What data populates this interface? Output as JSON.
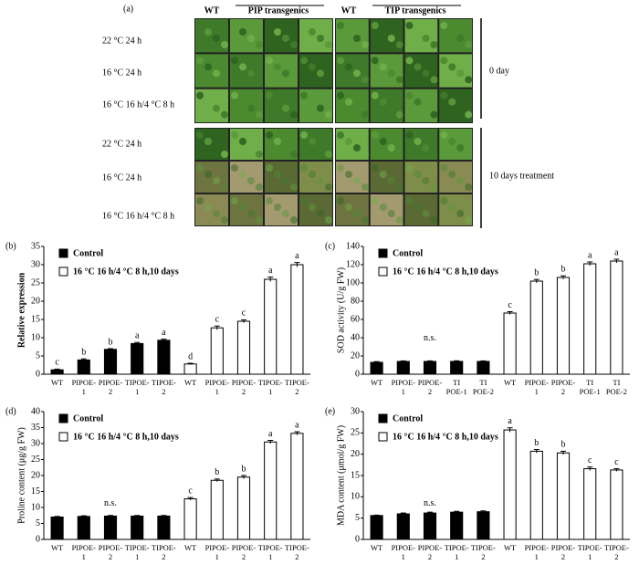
{
  "panel_a": {
    "label": "(a)",
    "headers": [
      "WT",
      "PIP transgenics",
      "WT",
      "TIP transgenics"
    ],
    "rows": [
      "22 °C 24 h",
      "16 °C 24 h",
      "16 °C 16 h/4 °C 8 h",
      "22 °C 24 h",
      "16 °C 24 h",
      "16 °C 16 h/4 °C 8 h"
    ],
    "periods": [
      "0 day",
      "10 days treatment"
    ]
  },
  "chart_data": [
    {
      "type": "bar",
      "panel": "(b)",
      "ylabel": "Relative expression",
      "categories": [
        "WT",
        "PIPOE-\n1",
        "PIPOE-\n2",
        "TIPOE-\n1",
        "TIPOE-\n2",
        "WT",
        "PIPOE-\n1",
        "PIPOE-\n2",
        "TIPOE-\n1",
        "TIPOE-\n2"
      ],
      "series": [
        {
          "name": "Control",
          "color": "#000000",
          "values": [
            1.2,
            3.9,
            6.8,
            8.4,
            9.3,
            null,
            null,
            null,
            null,
            null
          ],
          "errors": [
            0.2,
            0.3,
            0.2,
            0.3,
            0.3,
            null,
            null,
            null,
            null,
            null
          ],
          "letters": [
            "c",
            "b",
            "b",
            "a",
            "a",
            null,
            null,
            null,
            null,
            null
          ]
        },
        {
          "name": "16 °C 16 h/4 °C 8 h,10 days",
          "color": "#ffffff",
          "values": [
            null,
            null,
            null,
            null,
            null,
            2.8,
            12.7,
            14.5,
            26,
            30
          ],
          "errors": [
            null,
            null,
            null,
            null,
            null,
            0.2,
            0.5,
            0.4,
            0.6,
            0.6
          ],
          "letters": [
            null,
            null,
            null,
            null,
            null,
            "d",
            "c",
            "c",
            "a",
            "a"
          ]
        }
      ],
      "ylim": [
        0,
        35
      ],
      "yticks": [
        0,
        5,
        10,
        15,
        20,
        25,
        30,
        35
      ]
    },
    {
      "type": "bar",
      "panel": "(c)",
      "ylabel": "SOD activity (U/g FW)",
      "categories": [
        "WT",
        "PIPOE-\n1",
        "PIPOE-\n2",
        "TI\nPOE-1",
        "TI\nPOE-2",
        "WT",
        "PIPOE-\n1",
        "PIPOE-\n2",
        "TI\nPOE-1",
        "TI\nPOE-2"
      ],
      "series": [
        {
          "name": "Control",
          "color": "#000000",
          "values": [
            13,
            14,
            14,
            14,
            14,
            null,
            null,
            null,
            null,
            null
          ],
          "errors": [
            0.8,
            0.6,
            0.6,
            0.7,
            0.6,
            null,
            null,
            null,
            null,
            null
          ]
        },
        {
          "name": "16 °C 16 h/4 °C 8 h,10 days",
          "color": "#ffffff",
          "values": [
            null,
            null,
            null,
            null,
            null,
            67,
            102,
            106,
            121,
            124
          ],
          "errors": [
            null,
            null,
            null,
            null,
            null,
            1.5,
            1.8,
            1.8,
            2,
            2
          ],
          "letters": [
            null,
            null,
            null,
            null,
            null,
            "c",
            "b",
            "b",
            "a",
            "a"
          ]
        }
      ],
      "annotation": "n.s.",
      "ylim": [
        0,
        140
      ],
      "yticks": [
        0,
        20,
        40,
        60,
        80,
        100,
        120,
        140
      ]
    },
    {
      "type": "bar",
      "panel": "(d)",
      "ylabel": "Proline content (μg/g FW)",
      "categories": [
        "WT",
        "PIPOE-\n1",
        "PIPOE-\n2",
        "TIPOE-\n1",
        "TIPOE-\n2",
        "WT",
        "PIPOE-\n1",
        "PIPOE-\n2",
        "TIPOE-\n1",
        "TIPOE-\n2"
      ],
      "series": [
        {
          "name": "Control",
          "color": "#000000",
          "values": [
            7,
            7.2,
            7.3,
            7.3,
            7.3,
            null,
            null,
            null,
            null,
            null
          ],
          "errors": [
            0.2,
            0.2,
            0.2,
            0.2,
            0.2,
            null,
            null,
            null,
            null,
            null
          ]
        },
        {
          "name": "16 °C 16 h/4 °C 8 h,10 days",
          "color": "#ffffff",
          "values": [
            null,
            null,
            null,
            null,
            null,
            12.7,
            18.5,
            19.5,
            30.5,
            33.2
          ],
          "errors": [
            null,
            null,
            null,
            null,
            null,
            0.4,
            0.4,
            0.5,
            0.5,
            0.5
          ],
          "letters": [
            null,
            null,
            null,
            null,
            null,
            "c",
            "b",
            "b",
            "a",
            "a"
          ]
        }
      ],
      "annotation": "n.s.",
      "ylim": [
        0,
        40
      ],
      "yticks": [
        0,
        5,
        10,
        15,
        20,
        25,
        30,
        35,
        40
      ]
    },
    {
      "type": "bar",
      "panel": "(e)",
      "ylabel": "MDA content (μmol/g FW)",
      "categories": [
        "WT",
        "PIPOE-\n1",
        "PIPOE-\n2",
        "TIPOE-\n1",
        "TIPOE-\n2",
        "WT",
        "PIPOE-\n1",
        "PIPOE-\n2",
        "TIPOE-\n1",
        "TIPOE-\n2"
      ],
      "series": [
        {
          "name": "Control",
          "color": "#000000",
          "values": [
            5.6,
            6,
            6.2,
            6.4,
            6.5,
            null,
            null,
            null,
            null,
            null
          ],
          "errors": [
            0.1,
            0.2,
            0.2,
            0.2,
            0.2,
            null,
            null,
            null,
            null,
            null
          ]
        },
        {
          "name": "16 °C 16 h/4 °C 8 h,10 days",
          "color": "#ffffff",
          "values": [
            null,
            null,
            null,
            null,
            null,
            25.7,
            20.7,
            20.3,
            16.6,
            16.3
          ],
          "errors": [
            null,
            null,
            null,
            null,
            null,
            0.5,
            0.4,
            0.4,
            0.4,
            0.3
          ],
          "letters": [
            null,
            null,
            null,
            null,
            null,
            "a",
            "b",
            "b",
            "c",
            "c"
          ]
        }
      ],
      "annotation": "n.s.",
      "ylim": [
        0,
        30
      ],
      "yticks": [
        0,
        5,
        10,
        15,
        20,
        25,
        30
      ]
    }
  ]
}
